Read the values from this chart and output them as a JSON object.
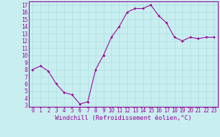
{
  "x": [
    0,
    1,
    2,
    3,
    4,
    5,
    6,
    7,
    8,
    9,
    10,
    11,
    12,
    13,
    14,
    15,
    16,
    17,
    18,
    19,
    20,
    21,
    22,
    23
  ],
  "y": [
    8.0,
    8.5,
    7.8,
    6.0,
    4.8,
    4.5,
    3.2,
    3.5,
    8.0,
    10.0,
    12.5,
    14.0,
    16.0,
    16.5,
    16.5,
    17.0,
    15.5,
    14.5,
    12.5,
    12.0,
    12.5,
    12.3,
    12.5,
    12.5
  ],
  "line_color": "#990099",
  "marker": "D",
  "marker_size": 2,
  "bg_color": "#c8eef0",
  "grid_color": "#aadddd",
  "xlabel": "Windchill (Refroidissement éolien,°C)",
  "ylim": [
    3,
    17
  ],
  "xlim": [
    0,
    23
  ],
  "yticks": [
    3,
    4,
    5,
    6,
    7,
    8,
    9,
    10,
    11,
    12,
    13,
    14,
    15,
    16,
    17
  ],
  "xticks": [
    0,
    1,
    2,
    3,
    4,
    5,
    6,
    7,
    8,
    9,
    10,
    11,
    12,
    13,
    14,
    15,
    16,
    17,
    18,
    19,
    20,
    21,
    22,
    23
  ],
  "tick_fontsize": 5.5,
  "xlabel_fontsize": 6.5,
  "xlabel_color": "#990099",
  "tick_color": "#990099",
  "spine_color": "#990099",
  "line_width": 0.8
}
